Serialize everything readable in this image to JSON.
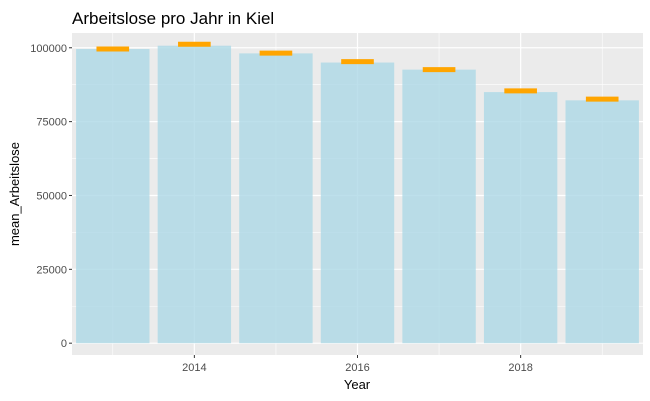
{
  "chart_data": {
    "type": "bar",
    "title": "Arbeitslose pro Jahr in Kiel",
    "xlabel": "Year",
    "ylabel": "mean_Arbeitslose",
    "x": [
      2013,
      2014,
      2015,
      2016,
      2017,
      2018,
      2019
    ],
    "values": [
      99600,
      100700,
      98100,
      95000,
      92600,
      85000,
      82200
    ],
    "error_markers": [
      99600,
      101200,
      98200,
      95300,
      92600,
      85400,
      82600
    ],
    "xlim": [
      2012.5,
      2019.5
    ],
    "ylim": [
      -4000,
      105000
    ],
    "x_ticks": [
      2014,
      2016,
      2018
    ],
    "y_ticks": [
      0,
      25000,
      50000,
      75000,
      100000
    ],
    "grid": true,
    "colors": {
      "bar": "#add8e6",
      "marker": "#ffa500",
      "panel": "#ebebeb",
      "grid": "#ffffff"
    }
  }
}
